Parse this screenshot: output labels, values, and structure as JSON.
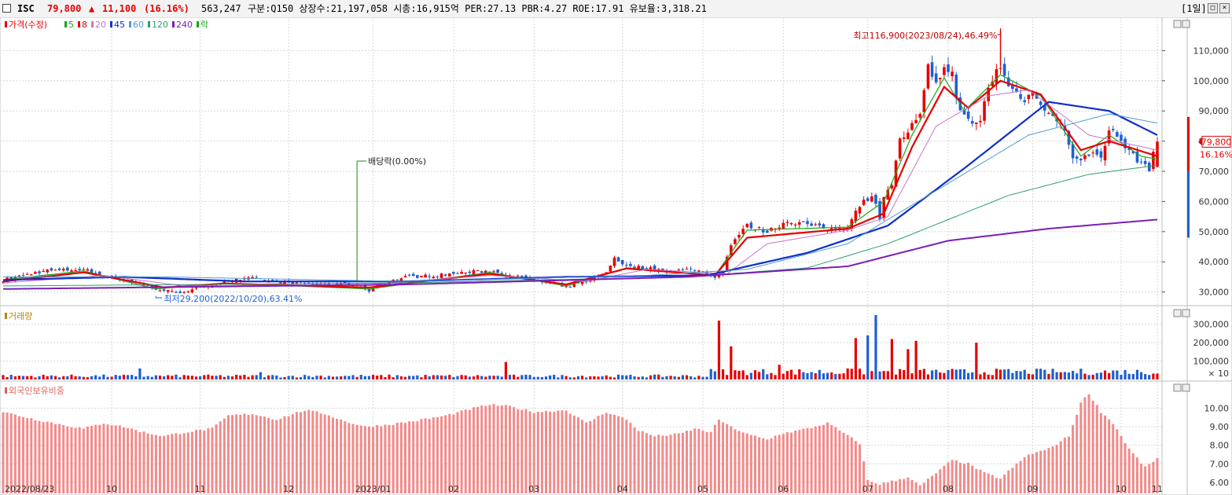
{
  "header": {
    "name": "ISC",
    "price": "79,800",
    "change_arrow": "▲",
    "change": "11,100",
    "change_pct": "(16.16%)",
    "volume": "563,247",
    "stats": "구분:Q150 상장수:21,197,058 시총:16,915억 PER:27.13 PBR:4.27 ROE:17.91 유보율:3,318.21",
    "period": "[1일]"
  },
  "colors": {
    "up": "#e60000",
    "down": "#1f5fd1",
    "ma5": "#19a819",
    "ma8": "#e60000",
    "ma20": "#c874c8",
    "ma45": "#0f2fcc",
    "ma60": "#4f9ad0",
    "ma120": "#2e9e6e",
    "ma240": "#7a1fb8",
    "foreign": "#f28a8a",
    "grid": "#d6d6d6"
  },
  "price_panel": {
    "legend": [
      {
        "label": "가격(수정)",
        "color": "#e60000"
      },
      {
        "label": "5",
        "color": "#19a819"
      },
      {
        "label": "8",
        "color": "#e60000"
      },
      {
        "label": "20",
        "color": "#c874c8"
      },
      {
        "label": "45",
        "color": "#0f2fcc"
      },
      {
        "label": "60",
        "color": "#4f9ad0"
      },
      {
        "label": "120",
        "color": "#2e9e6e"
      },
      {
        "label": "240",
        "color": "#7a1fb8"
      },
      {
        "label": "락",
        "color": "#19a819"
      }
    ],
    "high_annotation": "최고116,900(2023/08/24),46.49%",
    "low_annotation": "최저29,200(2022/10/20),63.41%",
    "dividend_annotation": "배당락(0.00%)",
    "price_tag": "79,800",
    "pct_tag": "16.16%"
  },
  "volume_panel": {
    "legend": "거래량",
    "unit": "× 10"
  },
  "foreign_panel": {
    "legend": "외국인보유비중"
  },
  "chart_data": [
    {
      "type": "candlestick",
      "series_name": "가격(수정)",
      "x_tick_labels": [
        "2022/08/23",
        "10",
        "11",
        "12",
        "2023/01",
        "02",
        "03",
        "04",
        "05",
        "06",
        "07",
        "08",
        "09",
        "10",
        "11"
      ],
      "y_ticks": [
        30000,
        40000,
        50000,
        60000,
        70000,
        80000,
        90000,
        100000,
        110000
      ],
      "y_tick_labels": [
        "30,000",
        "40,000",
        "50,000",
        "60,000",
        "70,000",
        "80,000",
        "90,000",
        "100,000",
        "110,000"
      ],
      "ylim": [
        26000,
        120000
      ],
      "close_path": [
        [
          0,
          34000
        ],
        [
          10,
          37000
        ],
        [
          20,
          37500
        ],
        [
          25,
          35500
        ],
        [
          32,
          33500
        ],
        [
          38,
          31000
        ],
        [
          43,
          29800
        ],
        [
          48,
          31000
        ],
        [
          55,
          33500
        ],
        [
          62,
          34500
        ],
        [
          70,
          33000
        ],
        [
          80,
          32500
        ],
        [
          88,
          32500
        ],
        [
          91,
          30500
        ],
        [
          95,
          33000
        ],
        [
          100,
          35000
        ],
        [
          108,
          35500
        ],
        [
          115,
          36500
        ],
        [
          121,
          37000
        ],
        [
          128,
          35000
        ],
        [
          135,
          33000
        ],
        [
          140,
          31500
        ],
        [
          145,
          33500
        ],
        [
          150,
          36500
        ],
        [
          152,
          41500
        ],
        [
          155,
          38500
        ],
        [
          160,
          38000
        ],
        [
          165,
          37000
        ],
        [
          172,
          37500
        ],
        [
          177,
          35000
        ],
        [
          179,
          37000
        ],
        [
          181,
          46000
        ],
        [
          185,
          52000
        ],
        [
          190,
          50000
        ],
        [
          195,
          53500
        ],
        [
          200,
          52500
        ],
        [
          205,
          50500
        ],
        [
          210,
          52000
        ],
        [
          213,
          59000
        ],
        [
          216,
          62000
        ],
        [
          218,
          55000
        ],
        [
          219,
          62000
        ],
        [
          221,
          66000
        ],
        [
          223,
          80000
        ],
        [
          226,
          85000
        ],
        [
          228,
          88000
        ],
        [
          230,
          104000
        ],
        [
          232,
          100000
        ],
        [
          234,
          104000
        ],
        [
          236,
          102000
        ],
        [
          237,
          95000
        ],
        [
          239,
          88000
        ],
        [
          241,
          85000
        ],
        [
          243,
          87000
        ],
        [
          245,
          98000
        ],
        [
          247,
          103000
        ],
        [
          248,
          105000
        ],
        [
          250,
          98000
        ],
        [
          252,
          96000
        ],
        [
          254,
          94000
        ],
        [
          256,
          96000
        ],
        [
          258,
          93000
        ],
        [
          261,
          88000
        ],
        [
          264,
          84000
        ],
        [
          266,
          75000
        ],
        [
          268,
          73000
        ],
        [
          270,
          76000
        ],
        [
          273,
          75000
        ],
        [
          275,
          84000
        ],
        [
          278,
          80000
        ],
        [
          281,
          75000
        ],
        [
          283,
          73000
        ],
        [
          285,
          71000
        ],
        [
          287,
          79800
        ]
      ],
      "ma_paths": {
        "5": [
          [
            0,
            34000
          ],
          [
            20,
            37000
          ],
          [
            38,
            31000
          ],
          [
            55,
            33000
          ],
          [
            91,
            31000
          ],
          [
            121,
            36500
          ],
          [
            140,
            32000
          ],
          [
            155,
            38000
          ],
          [
            177,
            35500
          ],
          [
            185,
            50500
          ],
          [
            210,
            51500
          ],
          [
            219,
            60000
          ],
          [
            226,
            82000
          ],
          [
            234,
            101000
          ],
          [
            239,
            90000
          ],
          [
            248,
            102000
          ],
          [
            258,
            95000
          ],
          [
            268,
            75000
          ],
          [
            275,
            82000
          ],
          [
            283,
            75000
          ],
          [
            287,
            74000
          ]
        ],
        "8": [
          [
            0,
            33500
          ],
          [
            20,
            36500
          ],
          [
            40,
            31500
          ],
          [
            55,
            32800
          ],
          [
            91,
            31500
          ],
          [
            121,
            36000
          ],
          [
            140,
            32500
          ],
          [
            155,
            37800
          ],
          [
            177,
            35500
          ],
          [
            185,
            48000
          ],
          [
            210,
            51000
          ],
          [
            219,
            56000
          ],
          [
            226,
            78000
          ],
          [
            234,
            98000
          ],
          [
            240,
            91000
          ],
          [
            248,
            100000
          ],
          [
            258,
            95500
          ],
          [
            268,
            77000
          ],
          [
            275,
            80000
          ],
          [
            287,
            75000
          ]
        ],
        "20": [
          [
            0,
            33000
          ],
          [
            25,
            35500
          ],
          [
            45,
            32000
          ],
          [
            91,
            32500
          ],
          [
            121,
            35500
          ],
          [
            145,
            33500
          ],
          [
            160,
            37500
          ],
          [
            180,
            36000
          ],
          [
            190,
            46000
          ],
          [
            210,
            50500
          ],
          [
            220,
            55000
          ],
          [
            232,
            85000
          ],
          [
            245,
            95000
          ],
          [
            255,
            97000
          ],
          [
            270,
            82000
          ],
          [
            287,
            77000
          ]
        ],
        "45": [
          [
            0,
            34000
          ],
          [
            30,
            35000
          ],
          [
            60,
            33500
          ],
          [
            100,
            33500
          ],
          [
            140,
            35000
          ],
          [
            175,
            35500
          ],
          [
            200,
            43000
          ],
          [
            220,
            52000
          ],
          [
            240,
            72000
          ],
          [
            260,
            93000
          ],
          [
            275,
            90000
          ],
          [
            287,
            82000
          ]
        ],
        "60": [
          [
            0,
            35000
          ],
          [
            40,
            35000
          ],
          [
            100,
            33500
          ],
          [
            160,
            35500
          ],
          [
            185,
            37500
          ],
          [
            210,
            46000
          ],
          [
            230,
            62000
          ],
          [
            255,
            82000
          ],
          [
            275,
            89000
          ],
          [
            287,
            86000
          ]
        ],
        "120": [
          [
            0,
            32000
          ],
          [
            100,
            33000
          ],
          [
            170,
            35000
          ],
          [
            200,
            38000
          ],
          [
            220,
            46000
          ],
          [
            250,
            62000
          ],
          [
            270,
            69000
          ],
          [
            287,
            72000
          ]
        ],
        "240": [
          [
            0,
            31000
          ],
          [
            100,
            32500
          ],
          [
            170,
            35000
          ],
          [
            210,
            38500
          ],
          [
            235,
            47000
          ],
          [
            260,
            51000
          ],
          [
            287,
            54000
          ]
        ]
      }
    },
    {
      "type": "bar",
      "series_name": "거래량",
      "y_ticks": [
        100000,
        200000,
        300000
      ],
      "y_tick_labels": [
        "100,000",
        "200,000",
        "300,000"
      ],
      "ylim": [
        0,
        380000
      ],
      "baseline_level": 18000,
      "spikes": [
        [
          34,
          60000
        ],
        [
          64,
          40000
        ],
        [
          125,
          95000
        ],
        [
          178,
          320000
        ],
        [
          181,
          180000
        ],
        [
          193,
          80000
        ],
        [
          210,
          60000
        ],
        [
          212,
          225000
        ],
        [
          215,
          240000
        ],
        [
          217,
          350000
        ],
        [
          221,
          220000
        ],
        [
          225,
          165000
        ],
        [
          227,
          210000
        ],
        [
          242,
          200000
        ],
        [
          262,
          40000
        ],
        [
          265,
          38000
        ],
        [
          272,
          35000
        ]
      ],
      "up_color": "#e60000",
      "down_color": "#1f5fd1"
    },
    {
      "type": "bar",
      "series_name": "외국인보유비중",
      "y_ticks": [
        6,
        7,
        8,
        9,
        10
      ],
      "y_tick_labels": [
        "6.00",
        "7.00",
        "8.00",
        "9.00",
        "10.00"
      ],
      "ylim": [
        5.4,
        11.3
      ],
      "path": [
        [
          0,
          9.8
        ],
        [
          8,
          9.4
        ],
        [
          15,
          9.1
        ],
        [
          20,
          8.9
        ],
        [
          25,
          9.2
        ],
        [
          30,
          9.0
        ],
        [
          35,
          8.7
        ],
        [
          40,
          8.5
        ],
        [
          45,
          8.7
        ],
        [
          52,
          8.9
        ],
        [
          56,
          9.6
        ],
        [
          62,
          9.7
        ],
        [
          68,
          9.4
        ],
        [
          75,
          9.9
        ],
        [
          80,
          9.7
        ],
        [
          85,
          9.3
        ],
        [
          90,
          9.0
        ],
        [
          95,
          9.1
        ],
        [
          102,
          9.3
        ],
        [
          110,
          9.6
        ],
        [
          117,
          10.0
        ],
        [
          121,
          10.2
        ],
        [
          126,
          10.1
        ],
        [
          132,
          9.8
        ],
        [
          140,
          9.9
        ],
        [
          145,
          9.2
        ],
        [
          150,
          9.8
        ],
        [
          155,
          9.4
        ],
        [
          158,
          8.8
        ],
        [
          162,
          8.5
        ],
        [
          168,
          8.6
        ],
        [
          172,
          8.9
        ],
        [
          176,
          8.7
        ],
        [
          178,
          9.4
        ],
        [
          180,
          9.1
        ],
        [
          185,
          8.6
        ],
        [
          190,
          8.3
        ],
        [
          193,
          8.6
        ],
        [
          200,
          8.9
        ],
        [
          205,
          9.2
        ],
        [
          208,
          8.8
        ],
        [
          213,
          8.1
        ],
        [
          215,
          6.1
        ],
        [
          218,
          5.9
        ],
        [
          222,
          6.1
        ],
        [
          225,
          6.3
        ],
        [
          228,
          5.8
        ],
        [
          232,
          6.5
        ],
        [
          236,
          7.2
        ],
        [
          240,
          7.0
        ],
        [
          244,
          6.5
        ],
        [
          248,
          6.2
        ],
        [
          251,
          6.8
        ],
        [
          255,
          7.5
        ],
        [
          260,
          7.8
        ],
        [
          265,
          8.5
        ],
        [
          268,
          10.3
        ],
        [
          270,
          10.8
        ],
        [
          273,
          9.8
        ],
        [
          276,
          9.2
        ],
        [
          280,
          7.8
        ],
        [
          284,
          6.8
        ],
        [
          287,
          7.3
        ]
      ]
    }
  ]
}
